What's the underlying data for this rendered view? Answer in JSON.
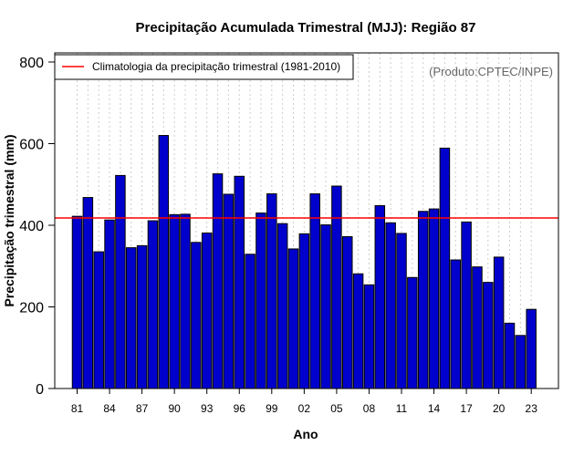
{
  "colors": {
    "bar_fill": "#0000cc",
    "bar_stroke": "#000000",
    "climatology_line": "#ff0000",
    "grid": "#cccccc",
    "credit_text": "#666666"
  },
  "chart_data": {
    "type": "bar",
    "title": "Precipitação Acumulada Trimestral (MJJ): Região 87",
    "xlabel": "Ano",
    "ylabel": "Precipitação trimestral (mm)",
    "ylim": [
      0,
      800
    ],
    "yticks": [
      0,
      200,
      400,
      600,
      800
    ],
    "grid": "vertical dotted",
    "credit": "(Produto:CPTEC/INPE)",
    "categories": [
      "1981",
      "1982",
      "1983",
      "1984",
      "1985",
      "1986",
      "1987",
      "1988",
      "1989",
      "1990",
      "1991",
      "1992",
      "1993",
      "1994",
      "1995",
      "1996",
      "1997",
      "1998",
      "1999",
      "2000",
      "2001",
      "2002",
      "2003",
      "2004",
      "2005",
      "2006",
      "2007",
      "2008",
      "2009",
      "2010",
      "2011",
      "2012",
      "2013",
      "2014",
      "2015",
      "2016",
      "2017",
      "2018",
      "2019",
      "2020",
      "2021",
      "2022",
      "2023"
    ],
    "xtick_labels": [
      "81",
      "84",
      "87",
      "90",
      "93",
      "96",
      "99",
      "02",
      "05",
      "08",
      "11",
      "14",
      "17",
      "20",
      "23"
    ],
    "xtick_every": 3,
    "values": [
      422,
      468,
      335,
      413,
      522,
      345,
      350,
      411,
      620,
      426,
      427,
      358,
      381,
      526,
      476,
      520,
      329,
      430,
      477,
      404,
      342,
      379,
      477,
      401,
      496,
      372,
      281,
      254,
      448,
      406,
      380,
      272,
      434,
      440,
      589,
      315,
      408,
      298,
      260,
      322,
      160,
      130,
      194
    ],
    "climatology": {
      "label": "Climatologia da precipitação trimestral (1981-2010)",
      "value": 418
    },
    "legend_position": "top-left"
  }
}
